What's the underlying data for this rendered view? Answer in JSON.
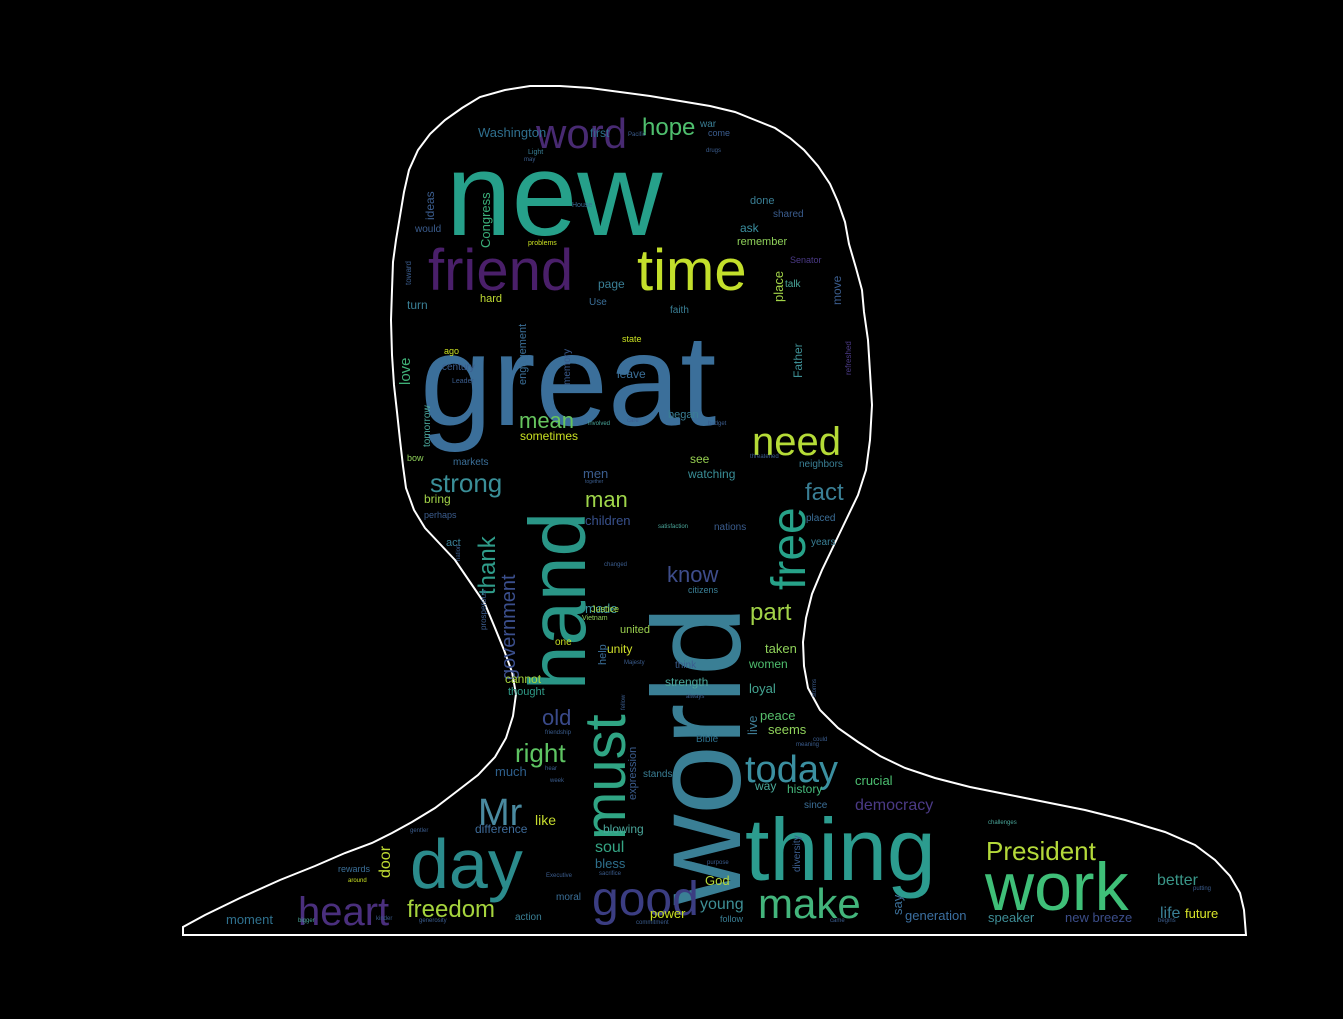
{
  "figure": {
    "background": "#000000",
    "outline_color": "#ffffff",
    "shape": "head-and-shoulders silhouette",
    "colormap": "viridis"
  },
  "words": [
    {
      "text": "new",
      "color": "#26a08a"
    },
    {
      "text": "great",
      "color": "#3b6f9a"
    },
    {
      "text": "world",
      "color": "#3a7f95"
    },
    {
      "text": "thing",
      "color": "#2c9c8f"
    },
    {
      "text": "work",
      "color": "#3fbf78"
    },
    {
      "text": "day",
      "color": "#2b8b8c"
    },
    {
      "text": "hand",
      "color": "#2a9687"
    },
    {
      "text": "must",
      "color": "#30a584"
    },
    {
      "text": "friend",
      "color": "#4a1f6a"
    },
    {
      "text": "time",
      "color": "#c3df2b"
    },
    {
      "text": "word",
      "color": "#482a72"
    },
    {
      "text": "free",
      "color": "#27a289"
    },
    {
      "text": "good",
      "color": "#3b3d82"
    },
    {
      "text": "heart",
      "color": "#4a2f7d"
    },
    {
      "text": "make",
      "color": "#43b57c"
    },
    {
      "text": "today",
      "color": "#3b8fa0"
    },
    {
      "text": "need",
      "color": "#b5db37"
    },
    {
      "text": "Mr",
      "color": "#4a8aa0"
    },
    {
      "text": "President",
      "color": "#b4d93a"
    },
    {
      "text": "freedom",
      "color": "#a6d43d"
    },
    {
      "text": "hope",
      "color": "#4fbf6e"
    },
    {
      "text": "strong",
      "color": "#3a8f98"
    },
    {
      "text": "mean",
      "color": "#66c45e"
    },
    {
      "text": "fact",
      "color": "#3a7f95"
    },
    {
      "text": "man",
      "color": "#9fd54a"
    },
    {
      "text": "know",
      "color": "#3e4d8b"
    },
    {
      "text": "part",
      "color": "#a2d348"
    },
    {
      "text": "right",
      "color": "#5ec463"
    },
    {
      "text": "old",
      "color": "#3a4a8a"
    },
    {
      "text": "thank",
      "color": "#2f9c8a"
    },
    {
      "text": "government",
      "color": "#3b4f8d"
    },
    {
      "text": "democracy",
      "color": "#4b3a86"
    },
    {
      "text": "Washington",
      "color": "#2f6f8e"
    },
    {
      "text": "Congress",
      "color": "#3bb07a"
    },
    {
      "text": "children",
      "color": "#38508b"
    },
    {
      "text": "better",
      "color": "#3a9688"
    },
    {
      "text": "young",
      "color": "#3e8f95"
    },
    {
      "text": "power",
      "color": "#c9e022"
    },
    {
      "text": "generation",
      "color": "#3b6fa0"
    },
    {
      "text": "new breeze",
      "color": "#3c4e8a"
    },
    {
      "text": "speaker",
      "color": "#3e8d96"
    },
    {
      "text": "future",
      "color": "#d9e52a"
    },
    {
      "text": "life",
      "color": "#3a7f95"
    },
    {
      "text": "God",
      "color": "#b5d83a"
    },
    {
      "text": "bless",
      "color": "#2e708d"
    },
    {
      "text": "soul",
      "color": "#35a584"
    },
    {
      "text": "difference",
      "color": "#3d6a98"
    },
    {
      "text": "like",
      "color": "#c6dc2e"
    },
    {
      "text": "much",
      "color": "#2e5f8c"
    },
    {
      "text": "moment",
      "color": "#2f718e"
    },
    {
      "text": "door",
      "color": "#c0dc33"
    },
    {
      "text": "say",
      "color": "#3b6f98"
    },
    {
      "text": "crucial",
      "color": "#4cbf71"
    },
    {
      "text": "history",
      "color": "#45b97b"
    },
    {
      "text": "way",
      "color": "#4aa89a"
    },
    {
      "text": "seems",
      "color": "#8fd15a"
    },
    {
      "text": "peace",
      "color": "#57c06c"
    },
    {
      "text": "live",
      "color": "#3e7d96"
    },
    {
      "text": "loyal",
      "color": "#44a693"
    },
    {
      "text": "women",
      "color": "#4fbf6e"
    },
    {
      "text": "taken",
      "color": "#8fd15a"
    },
    {
      "text": "strength",
      "color": "#4aa69a"
    },
    {
      "text": "think",
      "color": "#3b5d8e"
    },
    {
      "text": "cannot",
      "color": "#a8d73e"
    },
    {
      "text": "thought",
      "color": "#2f9a87"
    },
    {
      "text": "unity",
      "color": "#d0e02a"
    },
    {
      "text": "made",
      "color": "#3c96a0"
    },
    {
      "text": "united",
      "color": "#9bd14f"
    },
    {
      "text": "Justice",
      "color": "#a5d444"
    },
    {
      "text": "see",
      "color": "#96d050"
    },
    {
      "text": "watching",
      "color": "#3a8f98"
    },
    {
      "text": "men",
      "color": "#3b5d8e"
    },
    {
      "text": "bring",
      "color": "#a2d348"
    },
    {
      "text": "act",
      "color": "#3a7f95"
    },
    {
      "text": "sometimes",
      "color": "#c9e022"
    },
    {
      "text": "love",
      "color": "#3fb077"
    },
    {
      "text": "leave",
      "color": "#3b6f98"
    },
    {
      "text": "began",
      "color": "#3a7f95"
    },
    {
      "text": "engagement",
      "color": "#3b6f98"
    },
    {
      "text": "memory",
      "color": "#3a5a8c"
    },
    {
      "text": "century",
      "color": "#3b5d8e"
    },
    {
      "text": "ago",
      "color": "#c9e022"
    },
    {
      "text": "tomorrow",
      "color": "#4aa69a"
    },
    {
      "text": "hard",
      "color": "#c0dc33"
    },
    {
      "text": "turn",
      "color": "#3a7f95"
    },
    {
      "text": "ideas",
      "color": "#3b5d8e"
    },
    {
      "text": "would",
      "color": "#3b5d8e"
    },
    {
      "text": "first",
      "color": "#2e708d"
    },
    {
      "text": "war",
      "color": "#3a7f95"
    },
    {
      "text": "come",
      "color": "#3b5d8e"
    },
    {
      "text": "done",
      "color": "#3a7f95"
    },
    {
      "text": "ask",
      "color": "#3b8fa0"
    },
    {
      "text": "shared",
      "color": "#3b5d8e"
    },
    {
      "text": "remember",
      "color": "#8fd15a"
    },
    {
      "text": "page",
      "color": "#3a7f95"
    },
    {
      "text": "place",
      "color": "#a2d348"
    },
    {
      "text": "talk",
      "color": "#4aa69a"
    },
    {
      "text": "move",
      "color": "#3b5d8e"
    },
    {
      "text": "faith",
      "color": "#3a7f95"
    },
    {
      "text": "state",
      "color": "#c9e022"
    },
    {
      "text": "Use",
      "color": "#3b6f98"
    },
    {
      "text": "Father",
      "color": "#3e8f95"
    },
    {
      "text": "markets",
      "color": "#3b6f98"
    },
    {
      "text": "neighbors",
      "color": "#3a7f95"
    },
    {
      "text": "nations",
      "color": "#3b5d8e"
    },
    {
      "text": "placed",
      "color": "#3b6f98"
    },
    {
      "text": "years",
      "color": "#3a7f95"
    },
    {
      "text": "perhaps",
      "color": "#3b5d8e"
    },
    {
      "text": "one",
      "color": "#c9e022"
    },
    {
      "text": "help",
      "color": "#3b6f98"
    },
    {
      "text": "Bible",
      "color": "#2e708d"
    },
    {
      "text": "expression",
      "color": "#3b5d8e"
    },
    {
      "text": "stands",
      "color": "#3a7f95"
    },
    {
      "text": "blowing",
      "color": "#4aa69a"
    },
    {
      "text": "since",
      "color": "#3b6f98"
    },
    {
      "text": "diversity",
      "color": "#3b5d8e"
    },
    {
      "text": "follow",
      "color": "#3a7f95"
    },
    {
      "text": "action",
      "color": "#3a7f95"
    },
    {
      "text": "moral",
      "color": "#3b6f98"
    },
    {
      "text": "citizens",
      "color": "#3a7f95"
    },
    {
      "text": "Vietnam",
      "color": "#8fd15a"
    },
    {
      "text": "prosperous",
      "color": "#3b5d8e"
    },
    {
      "text": "bow",
      "color": "#8fd15a"
    },
    {
      "text": "Leader",
      "color": "#3b5d8e"
    },
    {
      "text": "House",
      "color": "#3b6f98"
    },
    {
      "text": "problems",
      "color": "#c9e022"
    },
    {
      "text": "Senator",
      "color": "#4b3a86"
    },
    {
      "text": "refreshed",
      "color": "#4b3a86"
    },
    {
      "text": "toward",
      "color": "#3b5d8e"
    },
    {
      "text": "Light",
      "color": "#3a7f95"
    },
    {
      "text": "may",
      "color": "#3b5d8e"
    },
    {
      "text": "drugs",
      "color": "#3b5d8e"
    },
    {
      "text": "Pacific",
      "color": "#3b5d8e"
    },
    {
      "text": "involved",
      "color": "#4aa69a"
    },
    {
      "text": "care",
      "color": "#3b5d8e"
    },
    {
      "text": "budget",
      "color": "#3b5d8e"
    },
    {
      "text": "threatened",
      "color": "#3b5d8e"
    },
    {
      "text": "together",
      "color": "#3b5d8e"
    },
    {
      "text": "satisfaction",
      "color": "#4aa69a"
    },
    {
      "text": "changed",
      "color": "#3b5d8e"
    },
    {
      "text": "always",
      "color": "#3b5d8e"
    },
    {
      "text": "Majesty",
      "color": "#3b5d8e"
    },
    {
      "text": "meaning",
      "color": "#3b5d8e"
    },
    {
      "text": "could",
      "color": "#3b5d8e"
    },
    {
      "text": "purpose",
      "color": "#3b5d8e"
    },
    {
      "text": "challenges",
      "color": "#4aa69a"
    },
    {
      "text": "bigger",
      "color": "#4aa69a"
    },
    {
      "text": "generosity",
      "color": "#3b5d8e"
    },
    {
      "text": "Executive",
      "color": "#3b5d8e"
    },
    {
      "text": "sacrifice",
      "color": "#3b5d8e"
    },
    {
      "text": "rewards",
      "color": "#3b6f98"
    },
    {
      "text": "kinder",
      "color": "#3b5d8e"
    },
    {
      "text": "gentler",
      "color": "#3b5d8e"
    },
    {
      "text": "around",
      "color": "#c9e022"
    },
    {
      "text": "putting",
      "color": "#3b5d8e"
    },
    {
      "text": "begins",
      "color": "#3b5d8e"
    },
    {
      "text": "nation",
      "color": "#3b5d8e"
    },
    {
      "text": "friendship",
      "color": "#3b5d8e"
    },
    {
      "text": "fellow",
      "color": "#3b5d8e"
    },
    {
      "text": "commitment",
      "color": "#3b5d8e"
    },
    {
      "text": "came",
      "color": "#3b5d8e"
    },
    {
      "text": "hear",
      "color": "#3b5d8e"
    },
    {
      "text": "week",
      "color": "#3b5d8e"
    },
    {
      "text": "storms",
      "color": "#3b5d8e"
    }
  ]
}
